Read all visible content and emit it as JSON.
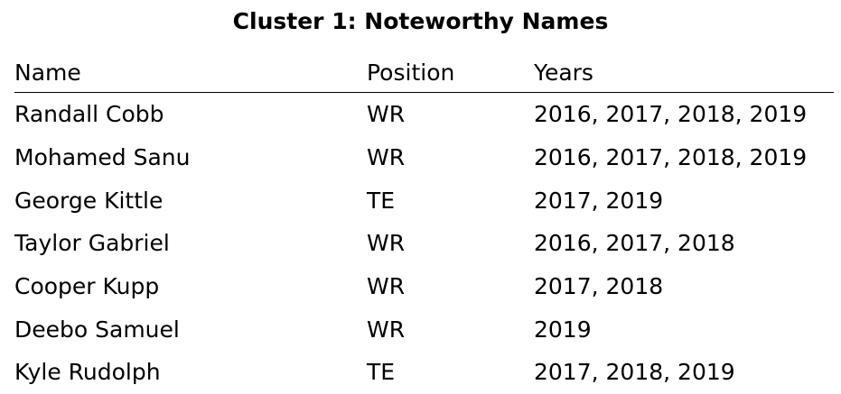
{
  "title": "Cluster 1: Noteworthy Names",
  "columns": [
    "Name",
    "Position",
    "Years"
  ],
  "rows": [
    {
      "name": "Randall Cobb",
      "position": "WR",
      "years": "2016, 2017, 2018, 2019"
    },
    {
      "name": "Mohamed Sanu",
      "position": "WR",
      "years": "2016, 2017, 2018, 2019"
    },
    {
      "name": "George Kittle",
      "position": "TE",
      "years": "2017, 2019"
    },
    {
      "name": "Taylor Gabriel",
      "position": "WR",
      "years": "2016, 2017, 2018"
    },
    {
      "name": "Cooper Kupp",
      "position": "WR",
      "years": "2017, 2018"
    },
    {
      "name": "Deebo Samuel",
      "position": "WR",
      "years": "2019"
    },
    {
      "name": "Kyle Rudolph",
      "position": "TE",
      "years": "2017, 2018, 2019"
    }
  ]
}
